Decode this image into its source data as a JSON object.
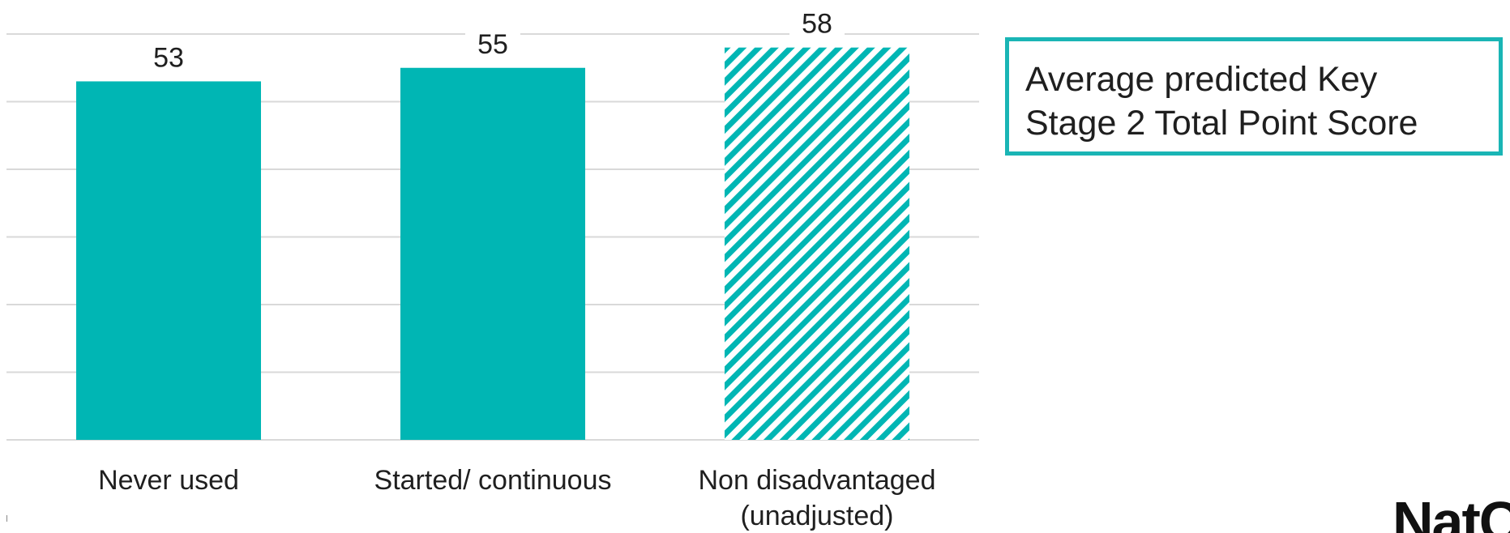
{
  "chart_data": {
    "type": "bar",
    "categories": [
      "Never used",
      "Started/ continuous",
      "Non disadvantaged (unadjusted)"
    ],
    "category_lines": [
      [
        "Never used"
      ],
      [
        "Started/ continuous"
      ],
      [
        "Non disadvantaged",
        "(unadjusted)"
      ]
    ],
    "values": [
      53,
      55,
      58
    ],
    "data_labels": [
      "53",
      "55",
      "58"
    ],
    "bar_styles": [
      "solid",
      "solid",
      "hatched"
    ],
    "title": "",
    "xlabel": "",
    "ylabel": "",
    "ylim": [
      0,
      60
    ],
    "gridlines": [
      0,
      10,
      20,
      30,
      40,
      50,
      60
    ],
    "grid": true,
    "colors": {
      "bar": "#00b6b4",
      "grid": "#d9d9d9",
      "text": "#1f1f1f"
    }
  },
  "annotation": {
    "line1": "Average predicted Key",
    "line2": "Stage 2 Total Point Score"
  },
  "logo": {
    "text": "NatCen"
  }
}
